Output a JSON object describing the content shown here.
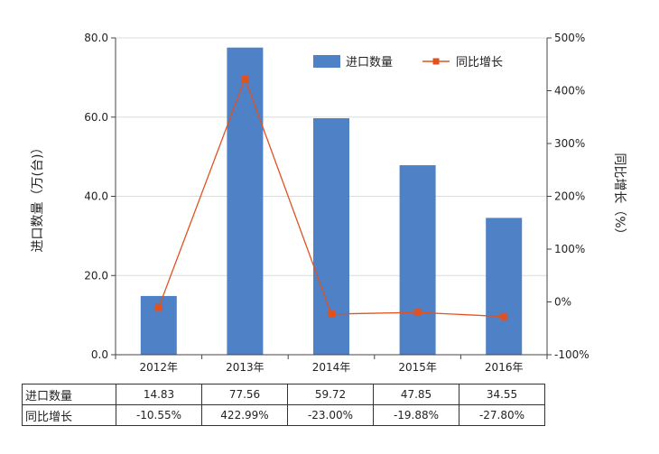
{
  "chart_data": {
    "type": "bar",
    "categories": [
      "2012年",
      "2013年",
      "2014年",
      "2015年",
      "2016年"
    ],
    "series": [
      {
        "name": "进口数量",
        "type": "bar",
        "axis": "left",
        "values": [
          14.83,
          77.56,
          59.72,
          47.85,
          34.55
        ],
        "color": "#4f81c7"
      },
      {
        "name": "同比增长",
        "type": "line",
        "axis": "right",
        "values": [
          -10.55,
          422.99,
          -23.0,
          -19.88,
          -27.8
        ],
        "color": "#e0521f"
      }
    ],
    "ylabel": "进口数量（万(台)）",
    "y2label": "同比增长（%）",
    "ylim": [
      0,
      80
    ],
    "y2lim": [
      -100,
      500
    ],
    "yticks": [
      "0.0",
      "20.0",
      "40.0",
      "60.0",
      "80.0"
    ],
    "y2ticks": [
      "-100%",
      "0%",
      "100%",
      "200%",
      "300%",
      "400%",
      "500%"
    ],
    "grid": true,
    "legend": "top-right"
  },
  "table": {
    "rows": [
      {
        "label": "进口数量",
        "cells": [
          "14.83",
          "77.56",
          "59.72",
          "47.85",
          "34.55"
        ]
      },
      {
        "label": "同比增长",
        "cells": [
          "-10.55%",
          "422.99%",
          "-23.00%",
          "-19.88%",
          "-27.80%"
        ]
      }
    ]
  }
}
